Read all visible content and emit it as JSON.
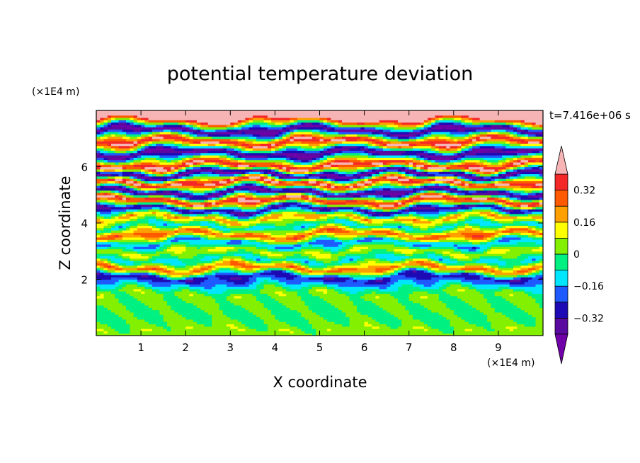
{
  "chart_data": {
    "type": "heatmap",
    "title": "potential temperature deviation",
    "xlabel": "X coordinate",
    "ylabel": "Z coordinate",
    "x_unit": "(×1E4 m)",
    "y_unit": "(×1E4 m)",
    "time_label": "t=7.416e+06 s",
    "xlim": [
      0,
      10
    ],
    "ylim": [
      0,
      8
    ],
    "x_ticks": [
      1,
      2,
      3,
      4,
      5,
      6,
      7,
      8,
      9
    ],
    "y_ticks": [
      2,
      4,
      6
    ],
    "x_tick_labels": [
      "1",
      "2",
      "3",
      "4",
      "5",
      "6",
      "7",
      "8",
      "9"
    ],
    "y_tick_labels": [
      "2",
      "4",
      "6"
    ],
    "colorbar": {
      "levels": [
        -0.4,
        -0.32,
        -0.24,
        -0.16,
        -0.08,
        0,
        0.08,
        0.16,
        0.24,
        0.32,
        0.4
      ],
      "tick_values": [
        0.32,
        0.16,
        0,
        -0.16,
        -0.32
      ],
      "tick_labels": [
        "0.32",
        "0.16",
        "0",
        "−0.16",
        "−0.32"
      ],
      "colors": [
        "#5a0a9e",
        "#1e0ab4",
        "#1e5aff",
        "#00e6ff",
        "#00f082",
        "#82f000",
        "#ffff00",
        "#ffa000",
        "#ff5a00",
        "#f52828"
      ],
      "over_color": "#f7b4b4",
      "under_color": "#7000a8"
    },
    "bands": [
      {
        "z": 7.7,
        "value": 0.45
      },
      {
        "z": 7.3,
        "value": -0.45
      },
      {
        "z": 6.9,
        "value": 0.45
      },
      {
        "z": 6.5,
        "value": -0.45
      },
      {
        "z": 6.05,
        "value": 0.45
      },
      {
        "z": 5.75,
        "value": -0.45
      },
      {
        "z": 5.45,
        "value": 0.45
      },
      {
        "z": 5.1,
        "value": -0.45
      },
      {
        "z": 4.8,
        "value": 0.45
      },
      {
        "z": 4.5,
        "value": -0.36
      },
      {
        "z": 4.2,
        "value": 0.2
      },
      {
        "z": 3.9,
        "value": -0.12
      },
      {
        "z": 3.6,
        "value": 0.3
      },
      {
        "z": 3.3,
        "value": -0.2
      },
      {
        "z": 3.0,
        "value": 0.1
      },
      {
        "z": 2.7,
        "value": -0.12
      },
      {
        "z": 2.4,
        "value": 0.28
      },
      {
        "z": 2.1,
        "value": -0.3
      },
      {
        "z": 1.5,
        "value": 0.04
      },
      {
        "z": 0.7,
        "value": -0.03
      },
      {
        "z": 0.2,
        "value": 0.05
      }
    ]
  }
}
